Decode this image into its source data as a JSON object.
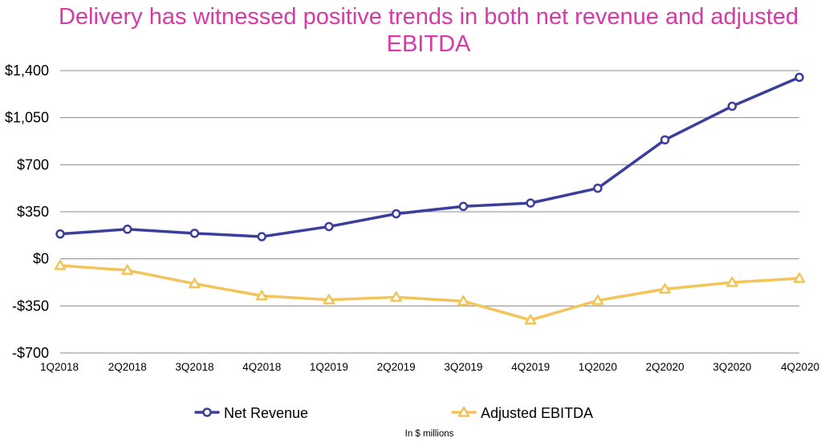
{
  "chart_data": {
    "type": "line",
    "title": "Delivery has witnessed positive trends in both net revenue and adjusted EBITDA",
    "categories": [
      "1Q2018",
      "2Q2018",
      "3Q2018",
      "4Q2018",
      "1Q2019",
      "2Q2019",
      "3Q2019",
      "4Q2019",
      "1Q2020",
      "2Q2020",
      "3Q2020",
      "4Q2020"
    ],
    "series": [
      {
        "name": "Net Revenue",
        "color": "#3b3f9c",
        "marker": "circle",
        "values": [
          185,
          220,
          190,
          165,
          240,
          335,
          390,
          415,
          525,
          885,
          1135,
          1350
        ]
      },
      {
        "name": "Adjusted EBITDA",
        "color": "#f2c45a",
        "marker": "triangle",
        "values": [
          -50,
          -85,
          -185,
          -275,
          -305,
          -285,
          -315,
          -455,
          -310,
          -225,
          -175,
          -145
        ]
      }
    ],
    "ylim": [
      -700,
      1400
    ],
    "yticks": [
      1400,
      1050,
      700,
      350,
      0,
      -350,
      -700
    ],
    "ytick_labels": [
      "$1,400",
      "$1,050",
      "$700",
      "$350",
      "$0",
      "-$350",
      "-$700"
    ],
    "grid": true,
    "legend_position": "bottom",
    "note": "In $ millions"
  }
}
